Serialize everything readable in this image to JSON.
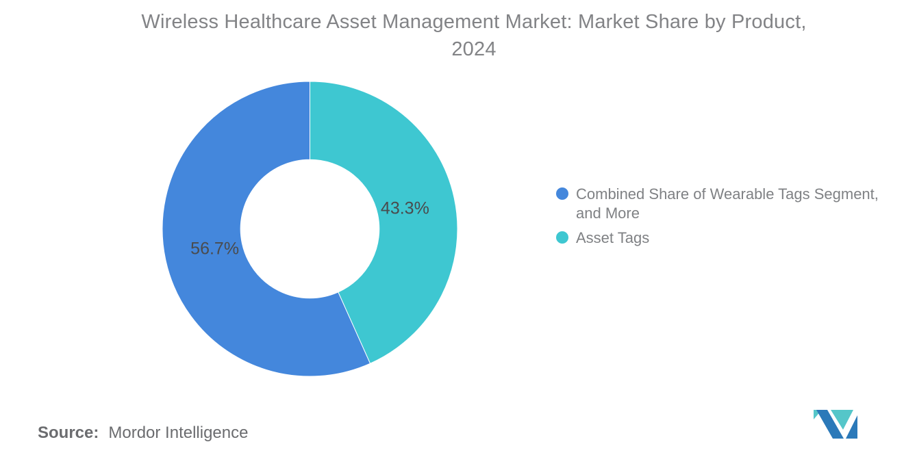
{
  "chart_data": {
    "type": "pie",
    "subtype": "donut",
    "title": "Wireless Healthcare Asset Management Market: Market Share by Product, 2024",
    "title_lines": [
      "Wireless Healthcare Asset Management Market: Market Share by Product,",
      "2024"
    ],
    "slices": [
      {
        "name": "Combined Share of Wearable Tags Segment, and More",
        "value": 56.7,
        "label": "56.7%",
        "color": "#4487DC"
      },
      {
        "name": "Asset Tags",
        "value": 43.3,
        "label": "43.3%",
        "color": "#3EC7D1"
      }
    ],
    "total": 100,
    "start_angle_deg": 0,
    "direction": "counterclockwise",
    "inner_radius_ratio": 0.47,
    "legend_position": "right",
    "data_label_color": "#4A4B4D",
    "grid": false
  },
  "legend": {
    "items": [
      {
        "lines": [
          "Combined Share of Wearable Tags Segment,",
          "and More"
        ],
        "color": "#4487DC"
      },
      {
        "lines": [
          "Asset Tags"
        ],
        "color": "#3EC7D1"
      }
    ]
  },
  "source": {
    "label": "Source:",
    "text": "Mordor Intelligence"
  },
  "logo": {
    "name": "mordor-intelligence-logo",
    "colors": {
      "blue": "#2B79B9",
      "teal": "#55C6C9"
    }
  },
  "colors": {
    "background": "#FFFFFF",
    "title_text": "#828386",
    "legend_text": "#7F8184",
    "source_text": "#6B6C6F"
  }
}
